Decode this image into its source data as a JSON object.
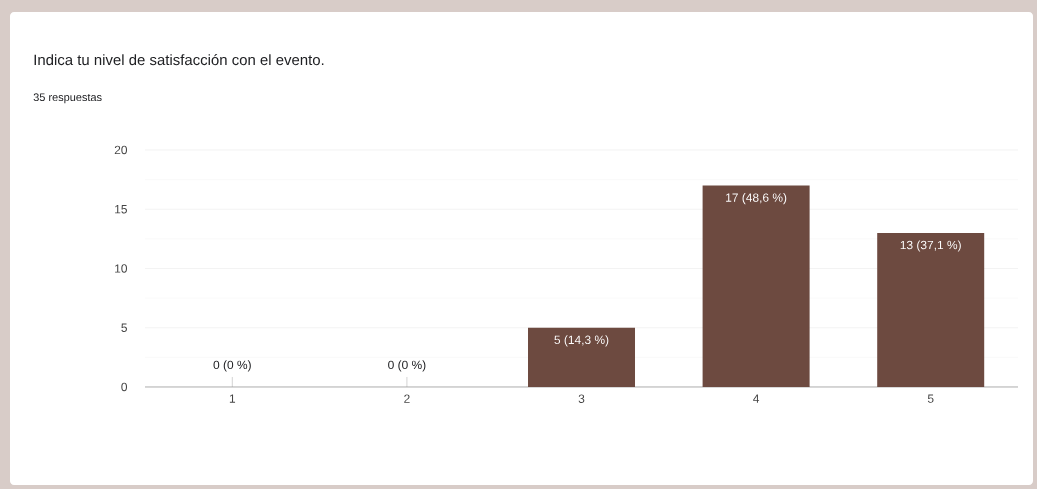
{
  "chart_data": {
    "type": "bar",
    "title": "Indica tu nivel de satisfacción con el evento.",
    "subtitle": "35 respuestas",
    "categories": [
      "1",
      "2",
      "3",
      "4",
      "5"
    ],
    "values": [
      0,
      0,
      5,
      17,
      13
    ],
    "value_labels": [
      "0 (0 %)",
      "0 (0 %)",
      "5 (14,3 %)",
      "17 (48,6 %)",
      "13 (37,1 %)"
    ],
    "color": "#6d4a40",
    "ylim": [
      0,
      20
    ],
    "yticks": [
      0,
      5,
      10,
      15,
      20
    ],
    "grid": "y"
  }
}
